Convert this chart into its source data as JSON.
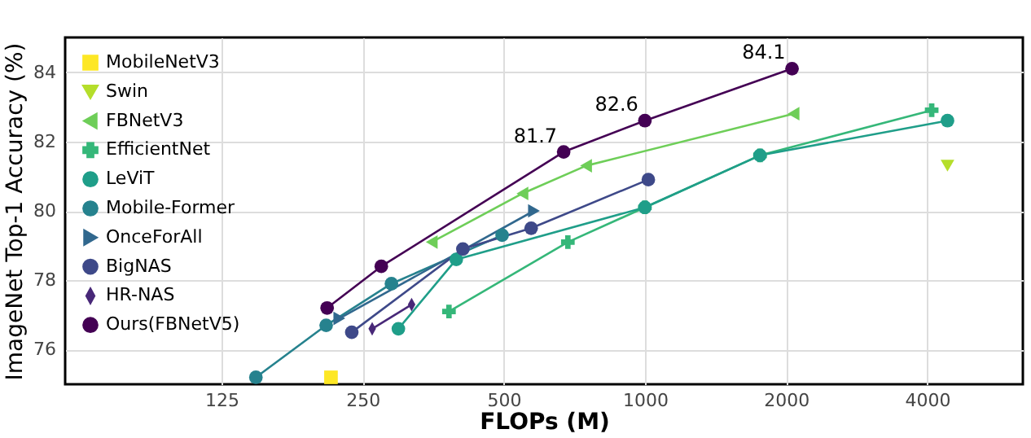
{
  "chart_data": {
    "type": "line",
    "xlabel": "FLOPs (M)",
    "ylabel": "ImageNet Top-1 Accuracy (%)",
    "log": "x",
    "xlim": [
      58,
      6400
    ],
    "ylim": [
      75,
      85
    ],
    "xticks": [
      125,
      250,
      500,
      {
        "value": 1000,
        "label": "1000"
      },
      {
        "value": 2000,
        "label": "2000"
      },
      {
        "value": 4000,
        "label": "4000"
      }
    ],
    "yticks": [
      76,
      78,
      80,
      82,
      84
    ],
    "grid": true,
    "legend": "top left",
    "series": [
      {
        "name": "MobileNetV3",
        "color": "#fde725",
        "marker": "square",
        "x": [
          214
        ],
        "values": [
          75.2
        ]
      },
      {
        "name": "Swin",
        "color": "#b5de2b",
        "marker": "triangle-down",
        "x": [
          4420
        ],
        "values": [
          81.3
        ]
      },
      {
        "name": "FBNetV3",
        "color": "#6ece58",
        "marker": "triangle-left",
        "x": [
          351,
          548,
          749,
          2075
        ],
        "values": [
          79.1,
          80.5,
          81.3,
          82.8
        ]
      },
      {
        "name": "EfficientNet",
        "color": "#35b779",
        "marker": "cross",
        "x": [
          382,
          685,
          1000,
          1760,
          4090
        ],
        "values": [
          77.1,
          79.1,
          80.1,
          81.6,
          82.9
        ]
      },
      {
        "name": "LeViT",
        "color": "#1f9e89",
        "marker": "circle",
        "x": [
          298,
          396,
          1000,
          1760,
          4420
        ],
        "values": [
          76.6,
          78.6,
          80.1,
          81.6,
          82.6
        ]
      },
      {
        "name": "Mobile-Former",
        "color": "#26828e",
        "marker": "circle",
        "x": [
          148,
          209,
          288,
          496
        ],
        "values": [
          75.2,
          76.7,
          77.9,
          79.3
        ]
      },
      {
        "name": "OnceForAll",
        "color": "#31688e",
        "marker": "triangle-right",
        "x": [
          223,
          580
        ],
        "values": [
          76.9,
          80.0
        ]
      },
      {
        "name": "BigNAS",
        "color": "#3e4989",
        "marker": "circle",
        "x": [
          237,
          409,
          572,
          1017
        ],
        "values": [
          76.5,
          78.9,
          79.5,
          80.9
        ]
      },
      {
        "name": "HR-NAS",
        "color": "#482878",
        "marker": "diamond",
        "x": [
          262,
          318
        ],
        "values": [
          76.6,
          77.3
        ]
      },
      {
        "name": "Ours(FBNetV5)",
        "color": "#440154",
        "marker": "circle",
        "x": [
          210,
          274,
          671,
          1000,
          2060
        ],
        "values": [
          77.2,
          78.4,
          81.7,
          82.6,
          84.1
        ],
        "value_labels": [
          null,
          null,
          "81.7",
          "82.6",
          "84.1"
        ]
      }
    ]
  }
}
